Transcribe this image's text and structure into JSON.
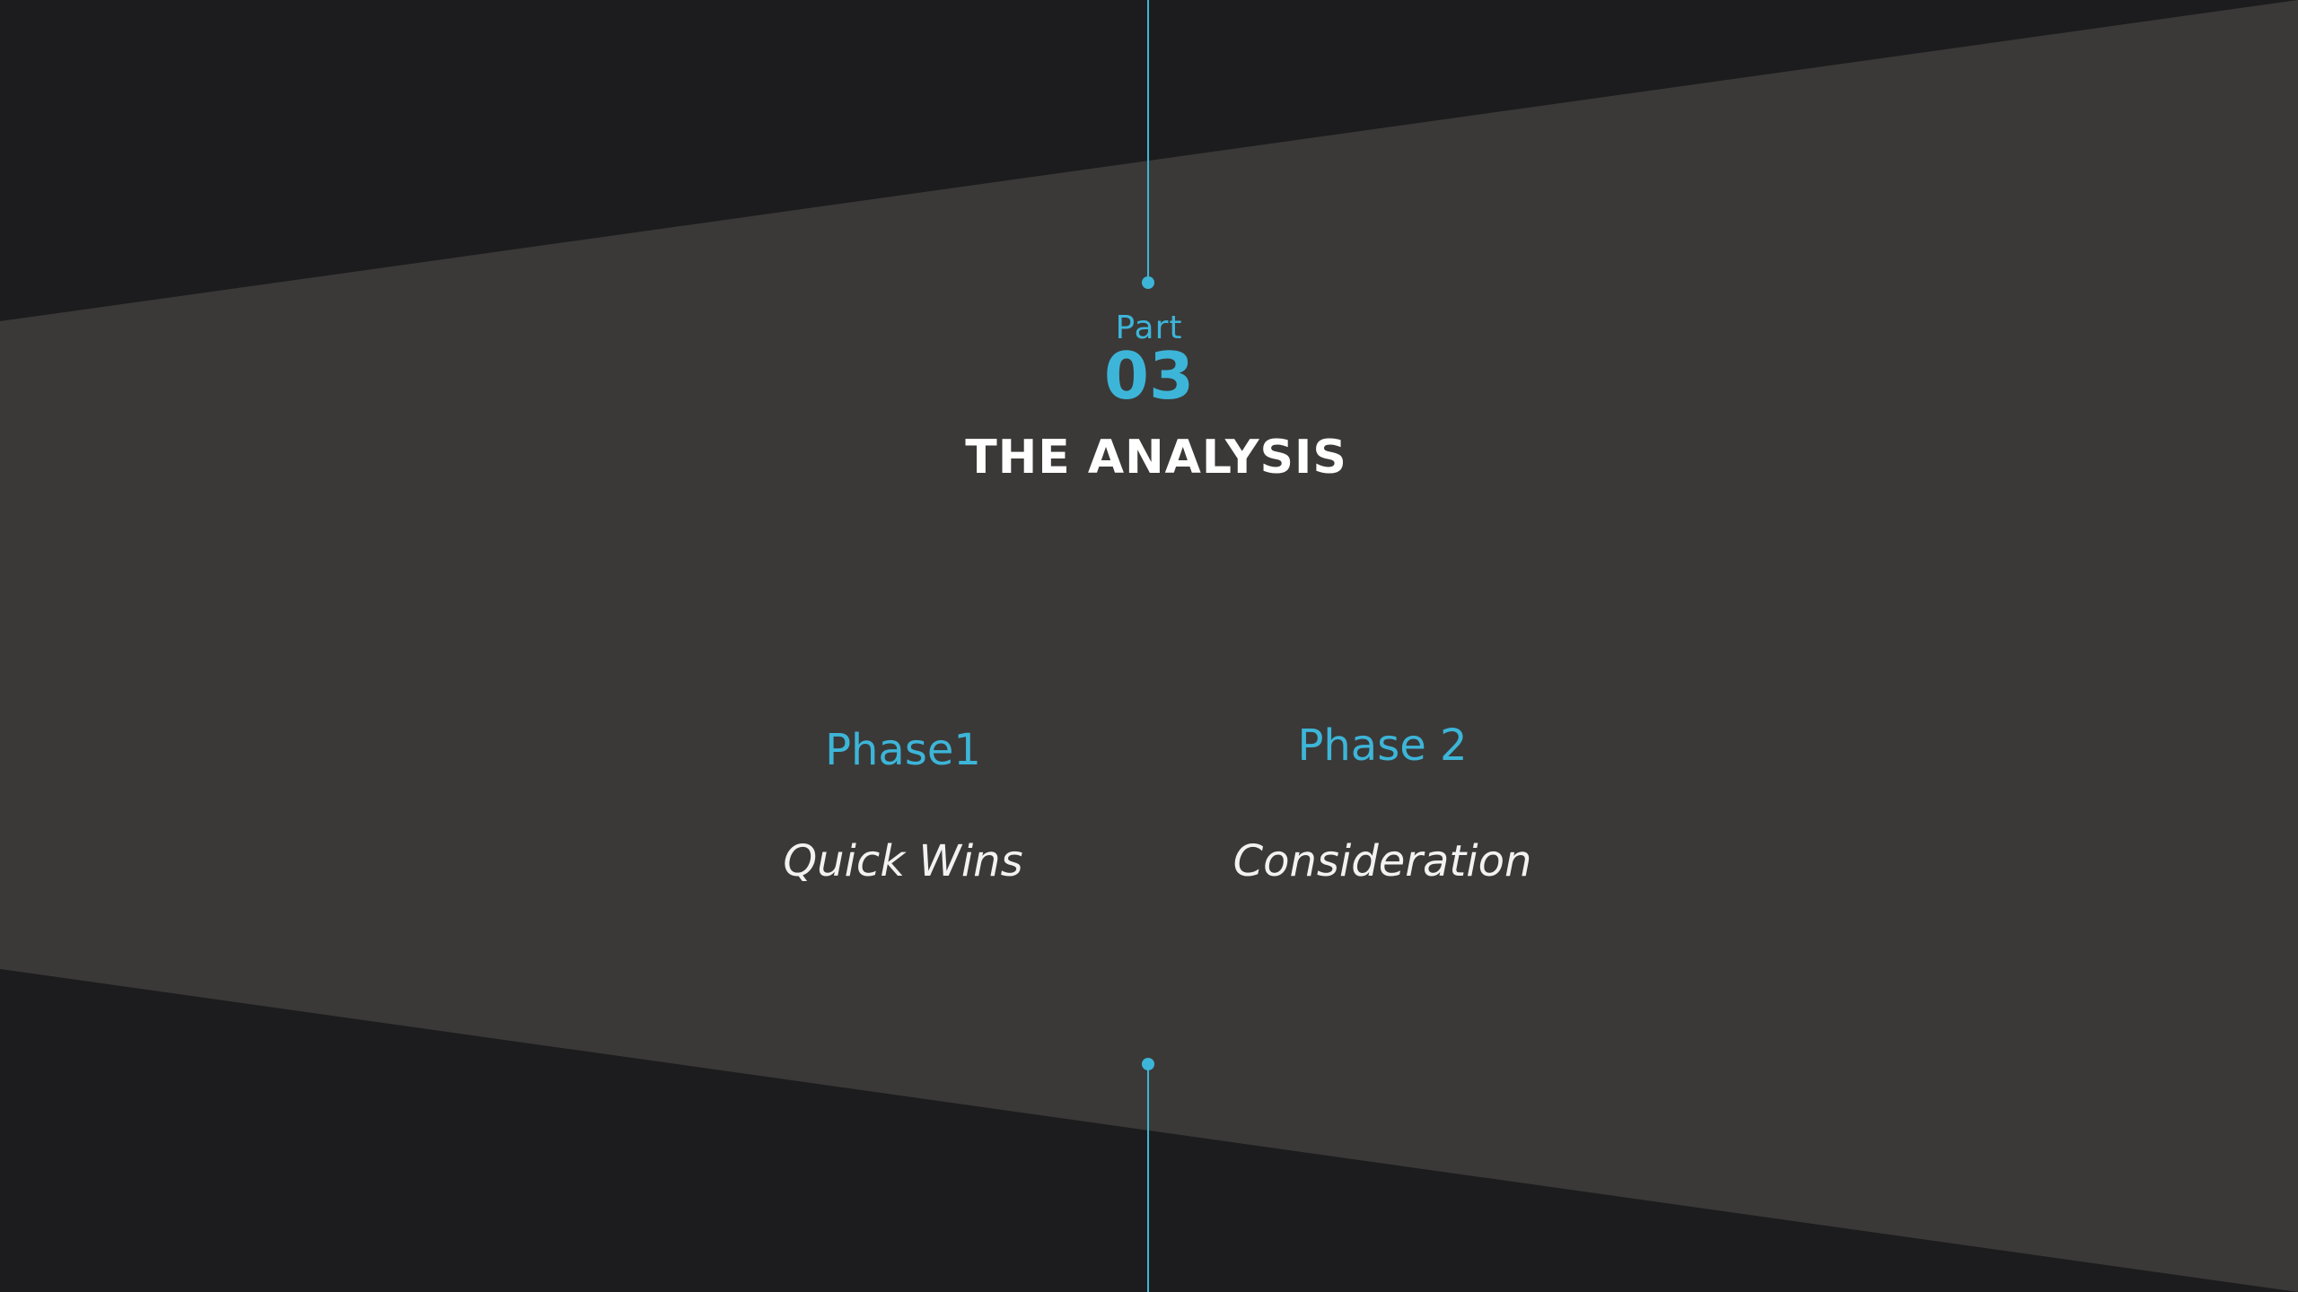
{
  "slide": {
    "part_label": "Part",
    "part_number": "03",
    "title": "THE ANALYSIS"
  },
  "phases": [
    {
      "label": "Phase1",
      "description": "Quick Wins"
    },
    {
      "label": "Phase 2",
      "description": "Consideration"
    }
  ],
  "colors": {
    "accent": "#3db5d8",
    "background": "#1c1c1e",
    "panel": "#3a3937",
    "title": "#ffffff"
  }
}
